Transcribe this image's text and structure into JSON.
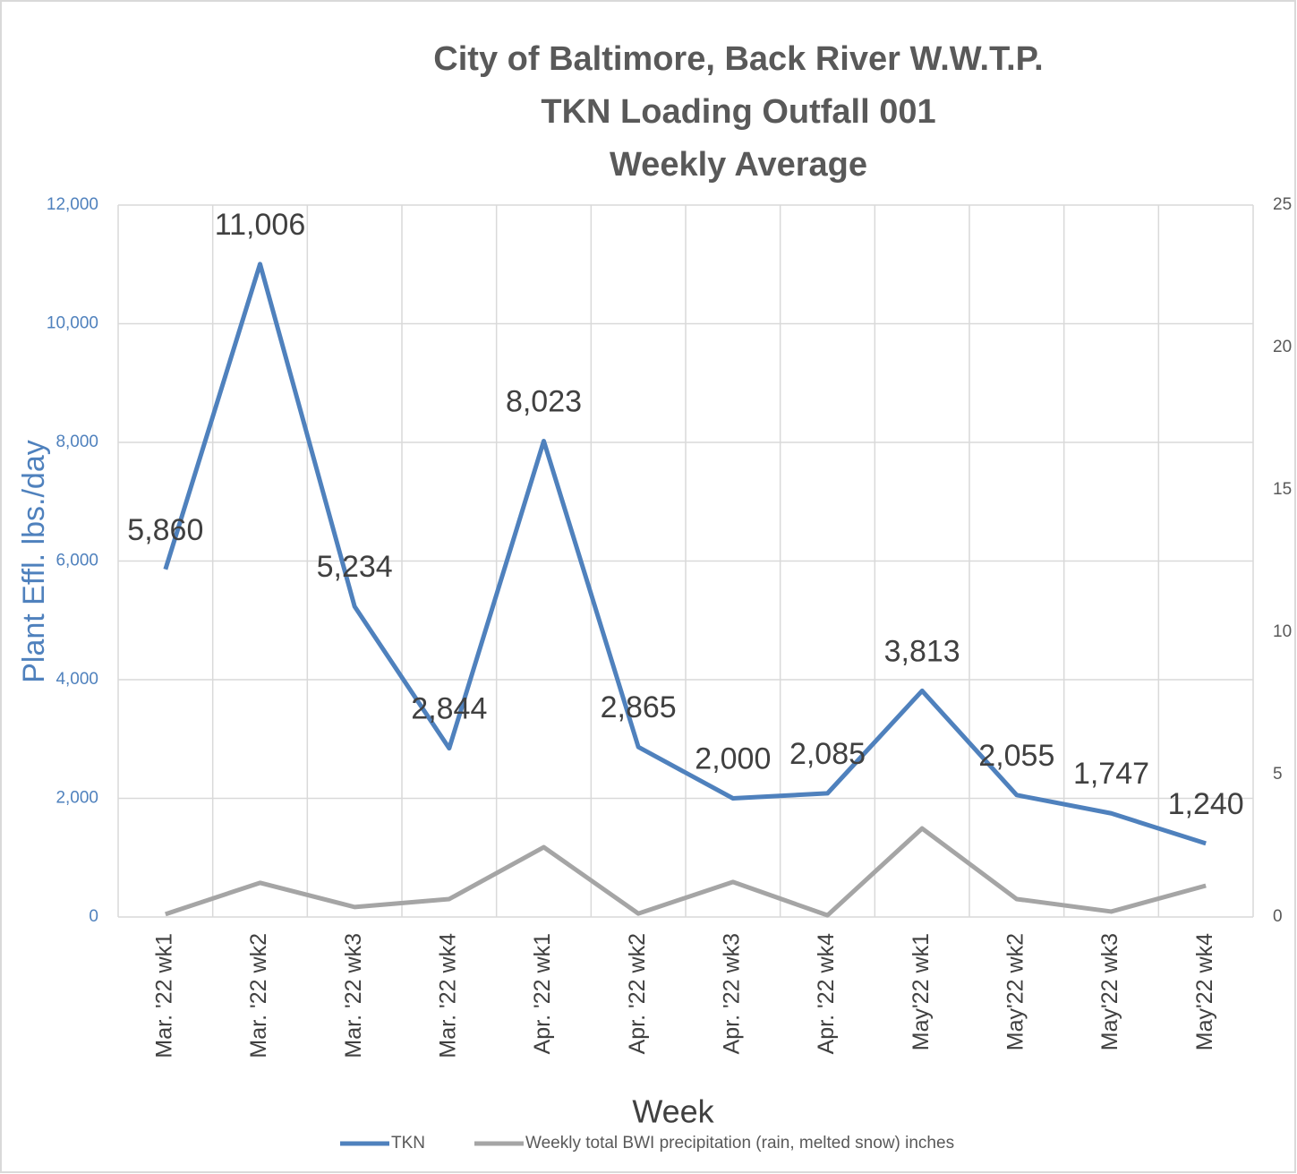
{
  "chart_data": {
    "type": "line",
    "title": [
      "City of Baltimore, Back River W.W.T.P.",
      "TKN Loading Outfall 001",
      "Weekly Average"
    ],
    "xlabel": "Week",
    "ylabel": "Plant Effl. lbs./day",
    "categories": [
      "Mar. '22 wk1",
      "Mar. '22 wk2",
      "Mar. '22 wk3",
      "Mar. '22 wk4",
      "Apr. '22 wk1",
      "Apr. '22 wk2",
      "Apr. '22 wk3",
      "Apr. '22 wk4",
      "May'22 wk1",
      "May'22 wk2",
      "May'22 wk3",
      "May'22 wk4"
    ],
    "series": [
      {
        "name": "TKN",
        "color": "#4f81bd",
        "axis": "y",
        "values": [
          5860,
          11006,
          5234,
          2844,
          8023,
          2865,
          2000,
          2085,
          3813,
          2055,
          1747,
          1240
        ],
        "value_labels": [
          "5,860",
          "11,006",
          "5,234",
          "2,844",
          "8,023",
          "2,865",
          "2,000",
          "2,085",
          "3,813",
          "2,055",
          "1,747",
          "1,240"
        ]
      },
      {
        "name": "Weekly total BWI precipitation  (rain, melted snow) inches",
        "color": "#a5a5a5",
        "axis": "y2",
        "values": [
          0.1,
          1.2,
          0.35,
          0.63,
          2.45,
          0.12,
          1.23,
          0.06,
          3.11,
          0.63,
          0.19,
          1.1
        ]
      }
    ],
    "ylim": [
      0,
      12000
    ],
    "yticks": [
      0,
      {
        "value": 2000,
        "label": "2,000"
      },
      {
        "value": 4000,
        "label": "4,000"
      },
      {
        "value": 6000,
        "label": "6,000"
      },
      {
        "value": 8000,
        "label": "8,000"
      },
      {
        "value": 10000,
        "label": "10,000"
      },
      {
        "value": 12000,
        "label": "12,000"
      }
    ],
    "y2lim": [
      0,
      25
    ],
    "y2ticks": [
      0,
      5,
      10,
      15,
      20,
      25
    ],
    "grid": true,
    "legend": "bottom"
  }
}
